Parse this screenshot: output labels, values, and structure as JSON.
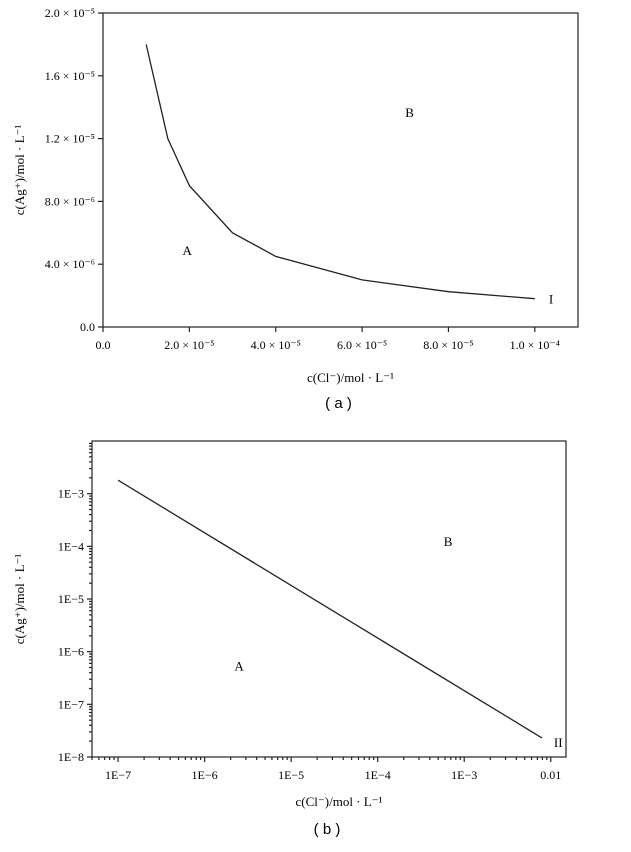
{
  "chart_data": [
    {
      "type": "line",
      "subtitle": "( a )",
      "xlabel": "c(Cl⁻)/mol · L⁻¹",
      "ylabel": "c(Ag⁺)/mol · L⁻¹",
      "xlim": [
        0,
        0.00011
      ],
      "ylim": [
        0,
        2e-05
      ],
      "x_ticks": [
        0,
        2e-05,
        4e-05,
        6e-05,
        8e-05,
        0.0001
      ],
      "x_tick_labels": [
        "0.0",
        "2.0 × 10⁻⁵",
        "4.0 × 10⁻⁵",
        "6.0 × 10⁻⁵",
        "8.0 × 10⁻⁵",
        "1.0 × 10⁻⁴"
      ],
      "y_ticks": [
        0,
        4e-06,
        8e-06,
        1.2e-05,
        1.6e-05,
        2e-05
      ],
      "y_tick_labels": [
        "0.0",
        "4.0 × 10⁻⁶",
        "8.0 × 10⁻⁶",
        "1.2 × 10⁻⁵",
        "1.6 × 10⁻⁵",
        "2.0 × 10⁻⁵"
      ],
      "series": [
        {
          "name": "I",
          "x": [
            1e-05,
            1.5e-05,
            2e-05,
            3e-05,
            4e-05,
            6e-05,
            8e-05,
            0.0001
          ],
          "y": [
            1.8e-05,
            1.2e-05,
            9e-06,
            6e-06,
            4.5e-06,
            3e-06,
            2.25e-06,
            1.8e-06
          ]
        }
      ],
      "annotations": [
        {
          "text": "A",
          "x": 1.95e-05,
          "y": 4.9e-06
        },
        {
          "text": "B",
          "x": 7.1e-05,
          "y": 1.37e-05
        }
      ]
    },
    {
      "type": "line",
      "subtitle": "( b )",
      "xlabel": "c(Cl⁻)/mol · L⁻¹",
      "ylabel": "c(Ag⁺)/mol · L⁻¹",
      "xscale": "log",
      "yscale": "log",
      "xlim": [
        5e-08,
        0.015
      ],
      "ylim": [
        1e-08,
        0.01
      ],
      "x_ticks": [
        1e-07,
        1e-06,
        1e-05,
        0.0001,
        0.001,
        0.01
      ],
      "x_tick_labels": [
        "1E−7",
        "1E−6",
        "1E−5",
        "1E−4",
        "1E−3",
        "0.01"
      ],
      "y_ticks": [
        1e-08,
        1e-07,
        1e-06,
        1e-05,
        0.0001,
        0.001
      ],
      "y_tick_labels": [
        "1E−8",
        "1E−7",
        "1E−6",
        "1E−5",
        "1E−4",
        "1E−3"
      ],
      "series": [
        {
          "name": "II",
          "x": [
            1e-07,
            0.0079
          ],
          "y": [
            0.0018,
            2.3e-08
          ]
        }
      ],
      "annotations": [
        {
          "text": "A",
          "x": 2.5e-06,
          "y": 5.5e-07
        },
        {
          "text": "B",
          "x": 0.00065,
          "y": 0.000125
        }
      ]
    }
  ]
}
